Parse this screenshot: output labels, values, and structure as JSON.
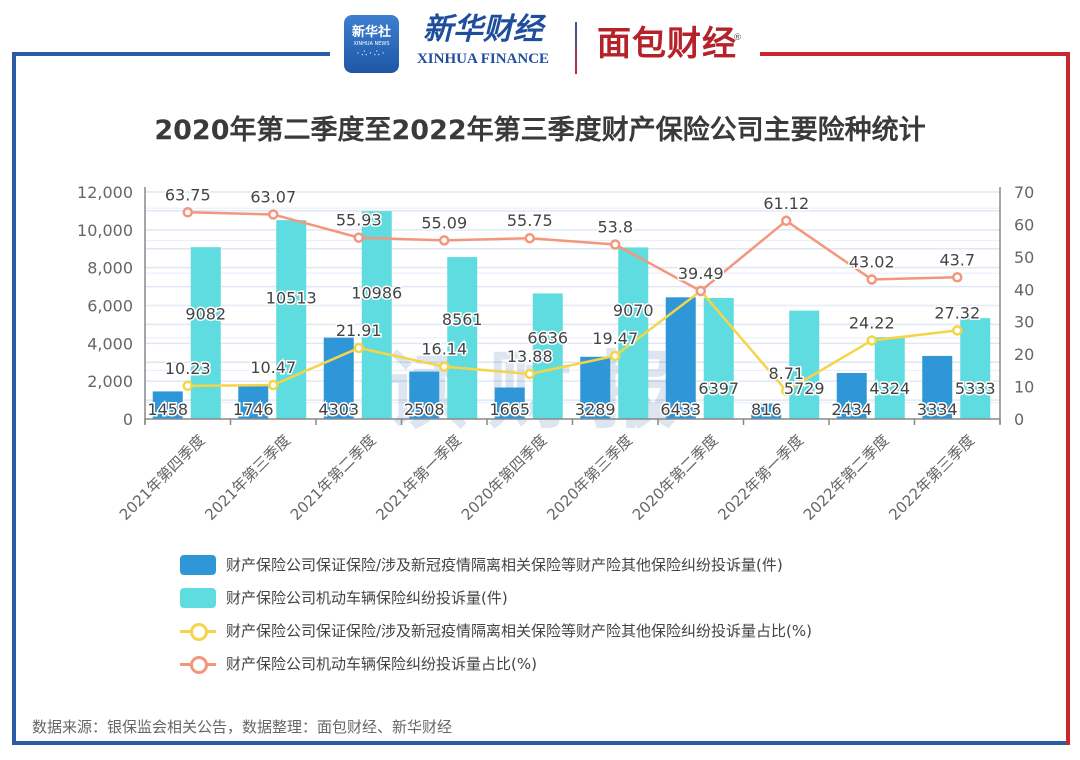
{
  "header": {
    "logo_xinhua_cn": "新华社",
    "logo_xinhua_en": "XINHUA NEWS",
    "logo_xinhua_finance_cn": "新华财经",
    "logo_xinhua_finance_en": "XINHUA FINANCE",
    "logo_mianbao": "面包财经",
    "registered_mark": "®"
  },
  "watermark": "读财报",
  "source": "数据来源：银保监会相关公告，数据整理：面包财经、新华财经",
  "colors": {
    "bar_guarantee": "#2f97d8",
    "bar_vehicle": "#5fdcdf",
    "line_guarantee": "#f5d547",
    "line_vehicle": "#f3967c",
    "frame_blue": "#2b5ba3",
    "frame_red": "#c9262e"
  },
  "chart_data": {
    "type": "bar",
    "title": "2020年第二季度至2022年第三季度财产保险公司主要险种统计",
    "categories": [
      "2021年第四季度",
      "2021年第三季度",
      "2021年第二季度",
      "2021年第一季度",
      "2020年第四季度",
      "2020年第三季度",
      "2020年第二季度",
      "2022年第一季度",
      "2022年第二季度",
      "2022年第三季度"
    ],
    "left_axis": {
      "ylim": [
        0,
        12000
      ],
      "ticks": [
        "0",
        "2,000",
        "4,000",
        "6,000",
        "8,000",
        "10,000",
        "12,000"
      ]
    },
    "right_axis": {
      "ylim": [
        0,
        70
      ],
      "ticks": [
        "0",
        "10",
        "20",
        "30",
        "40",
        "50",
        "60",
        "70"
      ]
    },
    "grid": true,
    "legend_position": "bottom",
    "series": [
      {
        "name": "财产保险公司保证保险/涉及新冠疫情隔离相关保险等财产险其他保险纠纷投诉量(件)",
        "type": "bar",
        "axis": "left",
        "values": [
          1458,
          1746,
          4303,
          2508,
          1665,
          3289,
          6433,
          816,
          2434,
          3334
        ]
      },
      {
        "name": "财产保险公司机动车辆保险纠纷投诉量(件)",
        "type": "bar",
        "axis": "left",
        "values": [
          9082,
          10513,
          10986,
          8561,
          6636,
          9070,
          6397,
          5729,
          4324,
          5333
        ]
      },
      {
        "name": "财产保险公司保证保险/涉及新冠疫情隔离相关保险等财产险其他保险纠纷投诉量占比(%)",
        "type": "line",
        "axis": "right",
        "values": [
          10.23,
          10.47,
          21.91,
          16.14,
          13.88,
          19.47,
          39.49,
          8.71,
          24.22,
          27.32
        ]
      },
      {
        "name": "财产保险公司机动车辆保险纠纷投诉量占比(%)",
        "type": "line",
        "axis": "right",
        "values": [
          63.75,
          63.07,
          55.93,
          55.09,
          55.75,
          53.8,
          39.49,
          61.12,
          43.02,
          43.7
        ]
      }
    ]
  }
}
